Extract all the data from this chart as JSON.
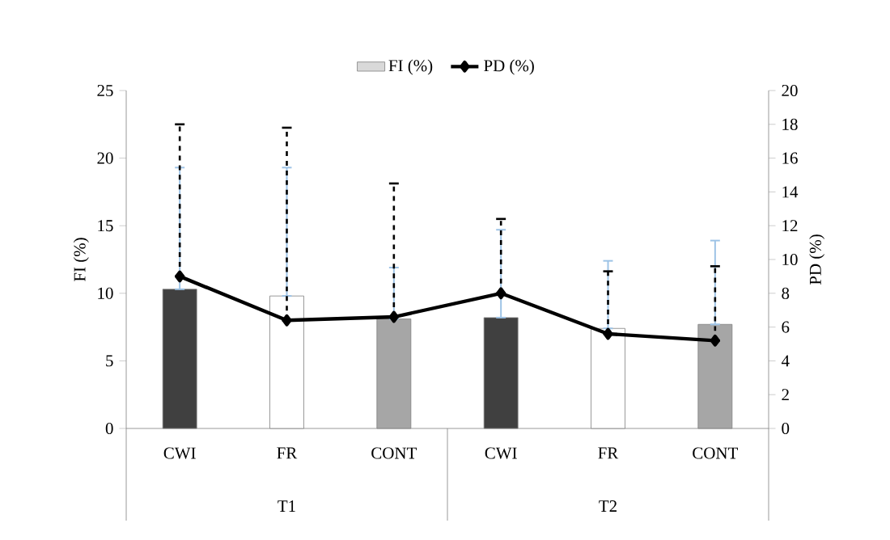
{
  "chart_data": {
    "type": "bar",
    "categories": [
      "CWI",
      "FR",
      "CONT",
      "CWI",
      "FR",
      "CONT"
    ],
    "annotations": [
      "T1",
      "T2"
    ],
    "ylabel": "FI (%)",
    "y2label": "PD (%)",
    "series": [
      {
        "name": "FI (%)",
        "color": "#d9d9d9",
        "colors": [
          "#404040",
          "#ffffff",
          "#a6a6a6",
          "#404040",
          "#ffffff",
          "#a6a6a6"
        ],
        "values": [
          10.3,
          9.8,
          8.1,
          8.2,
          7.4,
          7.7
        ],
        "errors": [
          [
            10.3,
            19.3
          ],
          [
            9.8,
            19.3
          ],
          [
            8.1,
            11.9
          ],
          [
            8.2,
            14.7
          ],
          [
            7.4,
            12.4
          ],
          [
            7.7,
            13.9
          ]
        ]
      },
      {
        "name": "PD (%)",
        "type": "line",
        "axis": "y2",
        "color": "#000000",
        "marker": "diamond",
        "line_style": "solid",
        "values": [
          9.0,
          6.4,
          6.6,
          8.0,
          5.6,
          5.2
        ],
        "errors": [
          [
            9.0,
            18.0
          ],
          [
            6.4,
            17.8
          ],
          [
            6.6,
            14.5
          ],
          [
            8.0,
            12.4
          ],
          [
            5.6,
            9.3
          ],
          [
            5.2,
            9.6
          ]
        ]
      }
    ],
    "ylim": [
      0,
      25
    ],
    "yticks": [
      0,
      5,
      10,
      15,
      20,
      25
    ],
    "y2lim": [
      0,
      20
    ],
    "y2ticks": [
      0,
      2,
      4,
      6,
      8,
      10,
      12,
      14,
      16,
      18,
      20
    ],
    "legend": "top",
    "grid": false
  }
}
